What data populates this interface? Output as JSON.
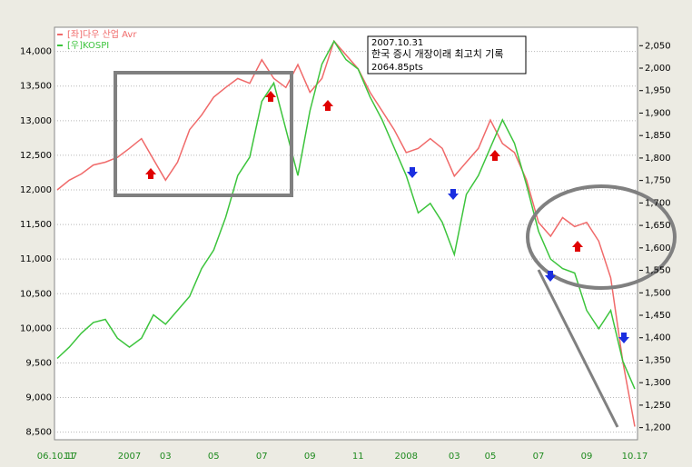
{
  "chart_data": {
    "type": "line",
    "categories": [
      "06.10.17",
      "11",
      null,
      null,
      null,
      null,
      "2007",
      null,
      null,
      "03",
      null,
      null,
      null,
      "05",
      null,
      null,
      null,
      "07",
      null,
      null,
      null,
      "09",
      null,
      null,
      null,
      "11",
      null,
      null,
      null,
      "2008",
      null,
      null,
      null,
      "03",
      null,
      null,
      "05",
      null,
      null,
      null,
      "07",
      null,
      null,
      null,
      "09",
      null,
      null,
      null,
      "10.17"
    ],
    "series": [
      {
        "name": "[좌]다우 산업 Avr",
        "color": "#f06a6a",
        "axis": "y",
        "values": [
          12000,
          12140,
          12230,
          12360,
          12400,
          12470,
          12600,
          12740,
          12440,
          12140,
          12400,
          12870,
          13080,
          13340,
          13480,
          13610,
          13540,
          13880,
          13610,
          13480,
          13810,
          13410,
          13610,
          14150,
          13950,
          13750,
          13410,
          13140,
          12870,
          12540,
          12600,
          12740,
          12600,
          12200,
          12400,
          12600,
          13010,
          12670,
          12540,
          12140,
          11530,
          11330,
          11600,
          11470,
          11530,
          11260,
          10730,
          9520,
          8580
        ]
      },
      {
        "name": "[우]KOSPI",
        "color": "#3cc43c",
        "axis": "y2",
        "values": [
          1354,
          1379,
          1410,
          1434,
          1441,
          1399,
          1379,
          1399,
          1451,
          1430,
          1461,
          1492,
          1554,
          1595,
          1668,
          1761,
          1802,
          1926,
          1967,
          1864,
          1761,
          1905,
          2009,
          2060,
          2019,
          1998,
          1936,
          1885,
          1823,
          1761,
          1678,
          1699,
          1657,
          1585,
          1719,
          1761,
          1823,
          1885,
          1833,
          1740,
          1637,
          1575,
          1554,
          1544,
          1461,
          1420,
          1461,
          1348,
          1286
        ]
      }
    ],
    "ylim": [
      8390,
      14350
    ],
    "yticks": [
      {
        "value": 8500,
        "label": "8,500"
      },
      {
        "value": 9000,
        "label": "9,000"
      },
      {
        "value": 9500,
        "label": "9,500"
      },
      {
        "value": 10000,
        "label": "10,000"
      },
      {
        "value": 10500,
        "label": "10,500"
      },
      {
        "value": 11000,
        "label": "11,000"
      },
      {
        "value": 11500,
        "label": "11,500"
      },
      {
        "value": 12000,
        "label": "12,000"
      },
      {
        "value": 12500,
        "label": "12,500"
      },
      {
        "value": 13000,
        "label": "13,000"
      },
      {
        "value": 13500,
        "label": "13,500"
      },
      {
        "value": 14000,
        "label": "14,000"
      }
    ],
    "y2lim": [
      1173,
      2091
    ],
    "y2ticks": [
      {
        "value": 1200,
        "label": "1,200"
      },
      {
        "value": 1250,
        "label": "1,250"
      },
      {
        "value": 1300,
        "label": "1,300"
      },
      {
        "value": 1350,
        "label": "1,350"
      },
      {
        "value": 1400,
        "label": "1,400"
      },
      {
        "value": 1450,
        "label": "1,450"
      },
      {
        "value": 1500,
        "label": "1,500"
      },
      {
        "value": 1550,
        "label": "1,550"
      },
      {
        "value": 1600,
        "label": "1,600"
      },
      {
        "value": 1650,
        "label": "1,650"
      },
      {
        "value": 1700,
        "label": "1,700"
      },
      {
        "value": 1750,
        "label": "1,750"
      },
      {
        "value": 1800,
        "label": "1,800"
      },
      {
        "value": 1850,
        "label": "1,850"
      },
      {
        "value": 1900,
        "label": "1,900"
      },
      {
        "value": 1950,
        "label": "1,950"
      },
      {
        "value": 2000,
        "label": "2,000"
      },
      {
        "value": 2050,
        "label": "2,050"
      }
    ],
    "grid": true,
    "annotation": {
      "date": "2007.10.31",
      "text": "한국 증시 개장이래 최고치 기록",
      "value": "2064.85pts"
    }
  }
}
